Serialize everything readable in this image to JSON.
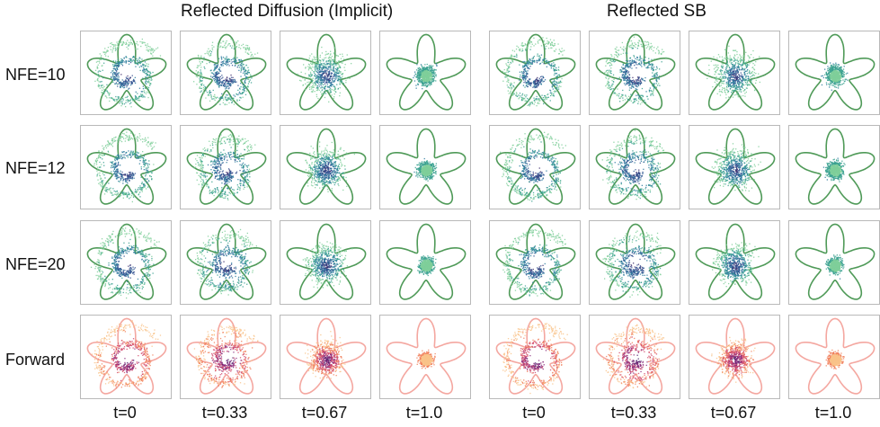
{
  "figure": {
    "groups": [
      {
        "title": "Reflected Diffusion (Implicit)"
      },
      {
        "title": "Reflected SB"
      }
    ],
    "rows": [
      {
        "label": "NFE=10",
        "kind": "generated",
        "spread": [
          1.0,
          0.95,
          0.55,
          0.2
        ]
      },
      {
        "label": "NFE=12",
        "kind": "generated",
        "spread": [
          1.0,
          0.92,
          0.5,
          0.18
        ]
      },
      {
        "label": "NFE=20",
        "kind": "generated",
        "spread": [
          1.0,
          0.9,
          0.48,
          0.16
        ]
      },
      {
        "label": "Forward",
        "kind": "forward",
        "spread": [
          1.0,
          0.88,
          0.4,
          0.14
        ]
      }
    ],
    "columns": [
      "t=0",
      "t=0.33",
      "t=0.67",
      "t=1.0"
    ],
    "colors": {
      "generated_boundary": "#4f9a58",
      "forward_boundary": "#f4a7a0",
      "generated_points": [
        "#3b2a6b",
        "#31508f",
        "#2b7a9c",
        "#3aa18f",
        "#7fcf9a"
      ],
      "forward_points": [
        "#4a1d6b",
        "#8a2c7b",
        "#d1496b",
        "#f17f5a",
        "#f9c38a"
      ],
      "panel_border": "#b9b9b9"
    }
  }
}
